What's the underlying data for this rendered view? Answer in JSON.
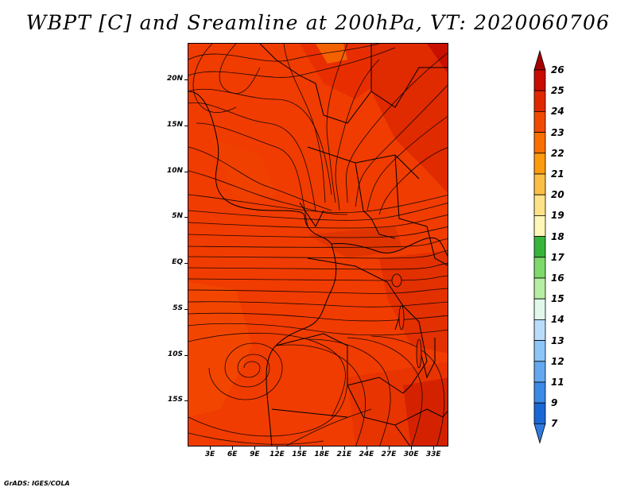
{
  "title": "WBPT [C] and Sreamline at 200hPa, VT: 2020060706",
  "credit": "GrADS: IGES/COLA",
  "map": {
    "field": "wet-bulb potential temperature at 200hPa",
    "lon_range": [
      0,
      35
    ],
    "lat_range": [
      -20,
      24
    ],
    "lat_ticks": [
      {
        "value": 20,
        "label": "20N"
      },
      {
        "value": 15,
        "label": "15N"
      },
      {
        "value": 10,
        "label": "10N"
      },
      {
        "value": 5,
        "label": "5N"
      },
      {
        "value": 0,
        "label": "EQ"
      },
      {
        "value": -5,
        "label": "5S"
      },
      {
        "value": -10,
        "label": "10S"
      },
      {
        "value": -15,
        "label": "15S"
      }
    ],
    "lon_ticks": [
      {
        "value": 3,
        "label": "3E"
      },
      {
        "value": 6,
        "label": "6E"
      },
      {
        "value": 9,
        "label": "9E"
      },
      {
        "value": 12,
        "label": "12E"
      },
      {
        "value": 15,
        "label": "15E"
      },
      {
        "value": 18,
        "label": "18E"
      },
      {
        "value": 21,
        "label": "21E"
      },
      {
        "value": 24,
        "label": "24E"
      },
      {
        "value": 27,
        "label": "27E"
      },
      {
        "value": 30,
        "label": "30E"
      },
      {
        "value": 33,
        "label": "33E"
      }
    ]
  },
  "colorbar": {
    "levels": [
      {
        "label": "26",
        "color": "#a50000"
      },
      {
        "label": "25",
        "color": "#c80a00"
      },
      {
        "label": "24",
        "color": "#e02800"
      },
      {
        "label": "23",
        "color": "#f04a00"
      },
      {
        "label": "22",
        "color": "#fa7000"
      },
      {
        "label": "21",
        "color": "#fc9b0c"
      },
      {
        "label": "20",
        "color": "#fcbf45"
      },
      {
        "label": "19",
        "color": "#fde288"
      },
      {
        "label": "18",
        "color": "#fff6b8"
      },
      {
        "label": "17",
        "color": "#36b53a"
      },
      {
        "label": "16",
        "color": "#7fd86a"
      },
      {
        "label": "15",
        "color": "#b5eda3"
      },
      {
        "label": "14",
        "color": "#e0f7ea"
      },
      {
        "label": "13",
        "color": "#b9dcfa"
      },
      {
        "label": "12",
        "color": "#8ec5f7"
      },
      {
        "label": "11",
        "color": "#64a8f0"
      },
      {
        "label": "9",
        "color": "#3b8ae6"
      },
      {
        "label": "7",
        "color": "#1a67d6"
      }
    ],
    "bottom_color": "#2f7ae0"
  }
}
